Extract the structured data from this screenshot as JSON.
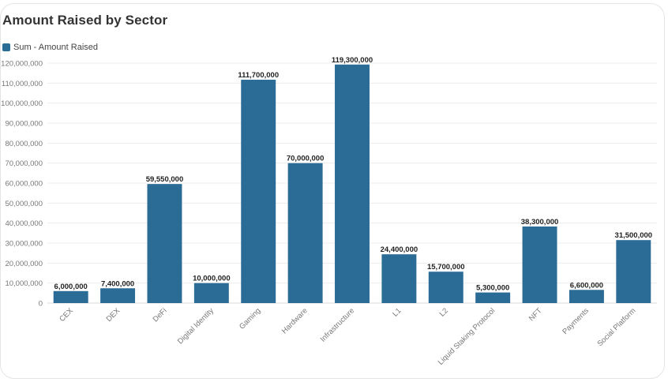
{
  "title": "Amount Raised by Sector",
  "legend": {
    "label": "Sum - Amount Raised",
    "color": "#2b6c96"
  },
  "chart_data": {
    "type": "bar",
    "title": "Amount Raised by Sector",
    "xlabel": "",
    "ylabel": "",
    "ylim": [
      0,
      120000000
    ],
    "yticks": [
      0,
      10000000,
      20000000,
      30000000,
      40000000,
      50000000,
      60000000,
      70000000,
      80000000,
      90000000,
      100000000,
      110000000,
      120000000
    ],
    "ytick_labels": [
      "0",
      "10,000,000",
      "20,000,000",
      "30,000,000",
      "40,000,000",
      "50,000,000",
      "60,000,000",
      "70,000,000",
      "80,000,000",
      "90,000,000",
      "100,000,000",
      "110,000,000",
      "120,000,000"
    ],
    "grid": true,
    "legend_position": "top-left",
    "bar_color": "#2b6c96",
    "categories": [
      "CEX",
      "DEX",
      "DeFi",
      "Digital Identity",
      "Gaming",
      "Hardware",
      "Infrastructure",
      "L1",
      "L2",
      "Liquid Staking Protocol",
      "NFT",
      "Payments",
      "Social Platform"
    ],
    "series": [
      {
        "name": "Sum - Amount Raised",
        "values": [
          6000000,
          7400000,
          59550000,
          10000000,
          111700000,
          70000000,
          119300000,
          24400000,
          15700000,
          5300000,
          38300000,
          6600000,
          31500000
        ],
        "data_labels": [
          "6,000,000",
          "7,400,000",
          "59,550,000",
          "10,000,000",
          "111,700,000",
          "70,000,000",
          "119,300,000",
          "24,400,000",
          "15,700,000",
          "5,300,000",
          "38,300,000",
          "6,600,000",
          "31,500,000"
        ]
      }
    ]
  }
}
